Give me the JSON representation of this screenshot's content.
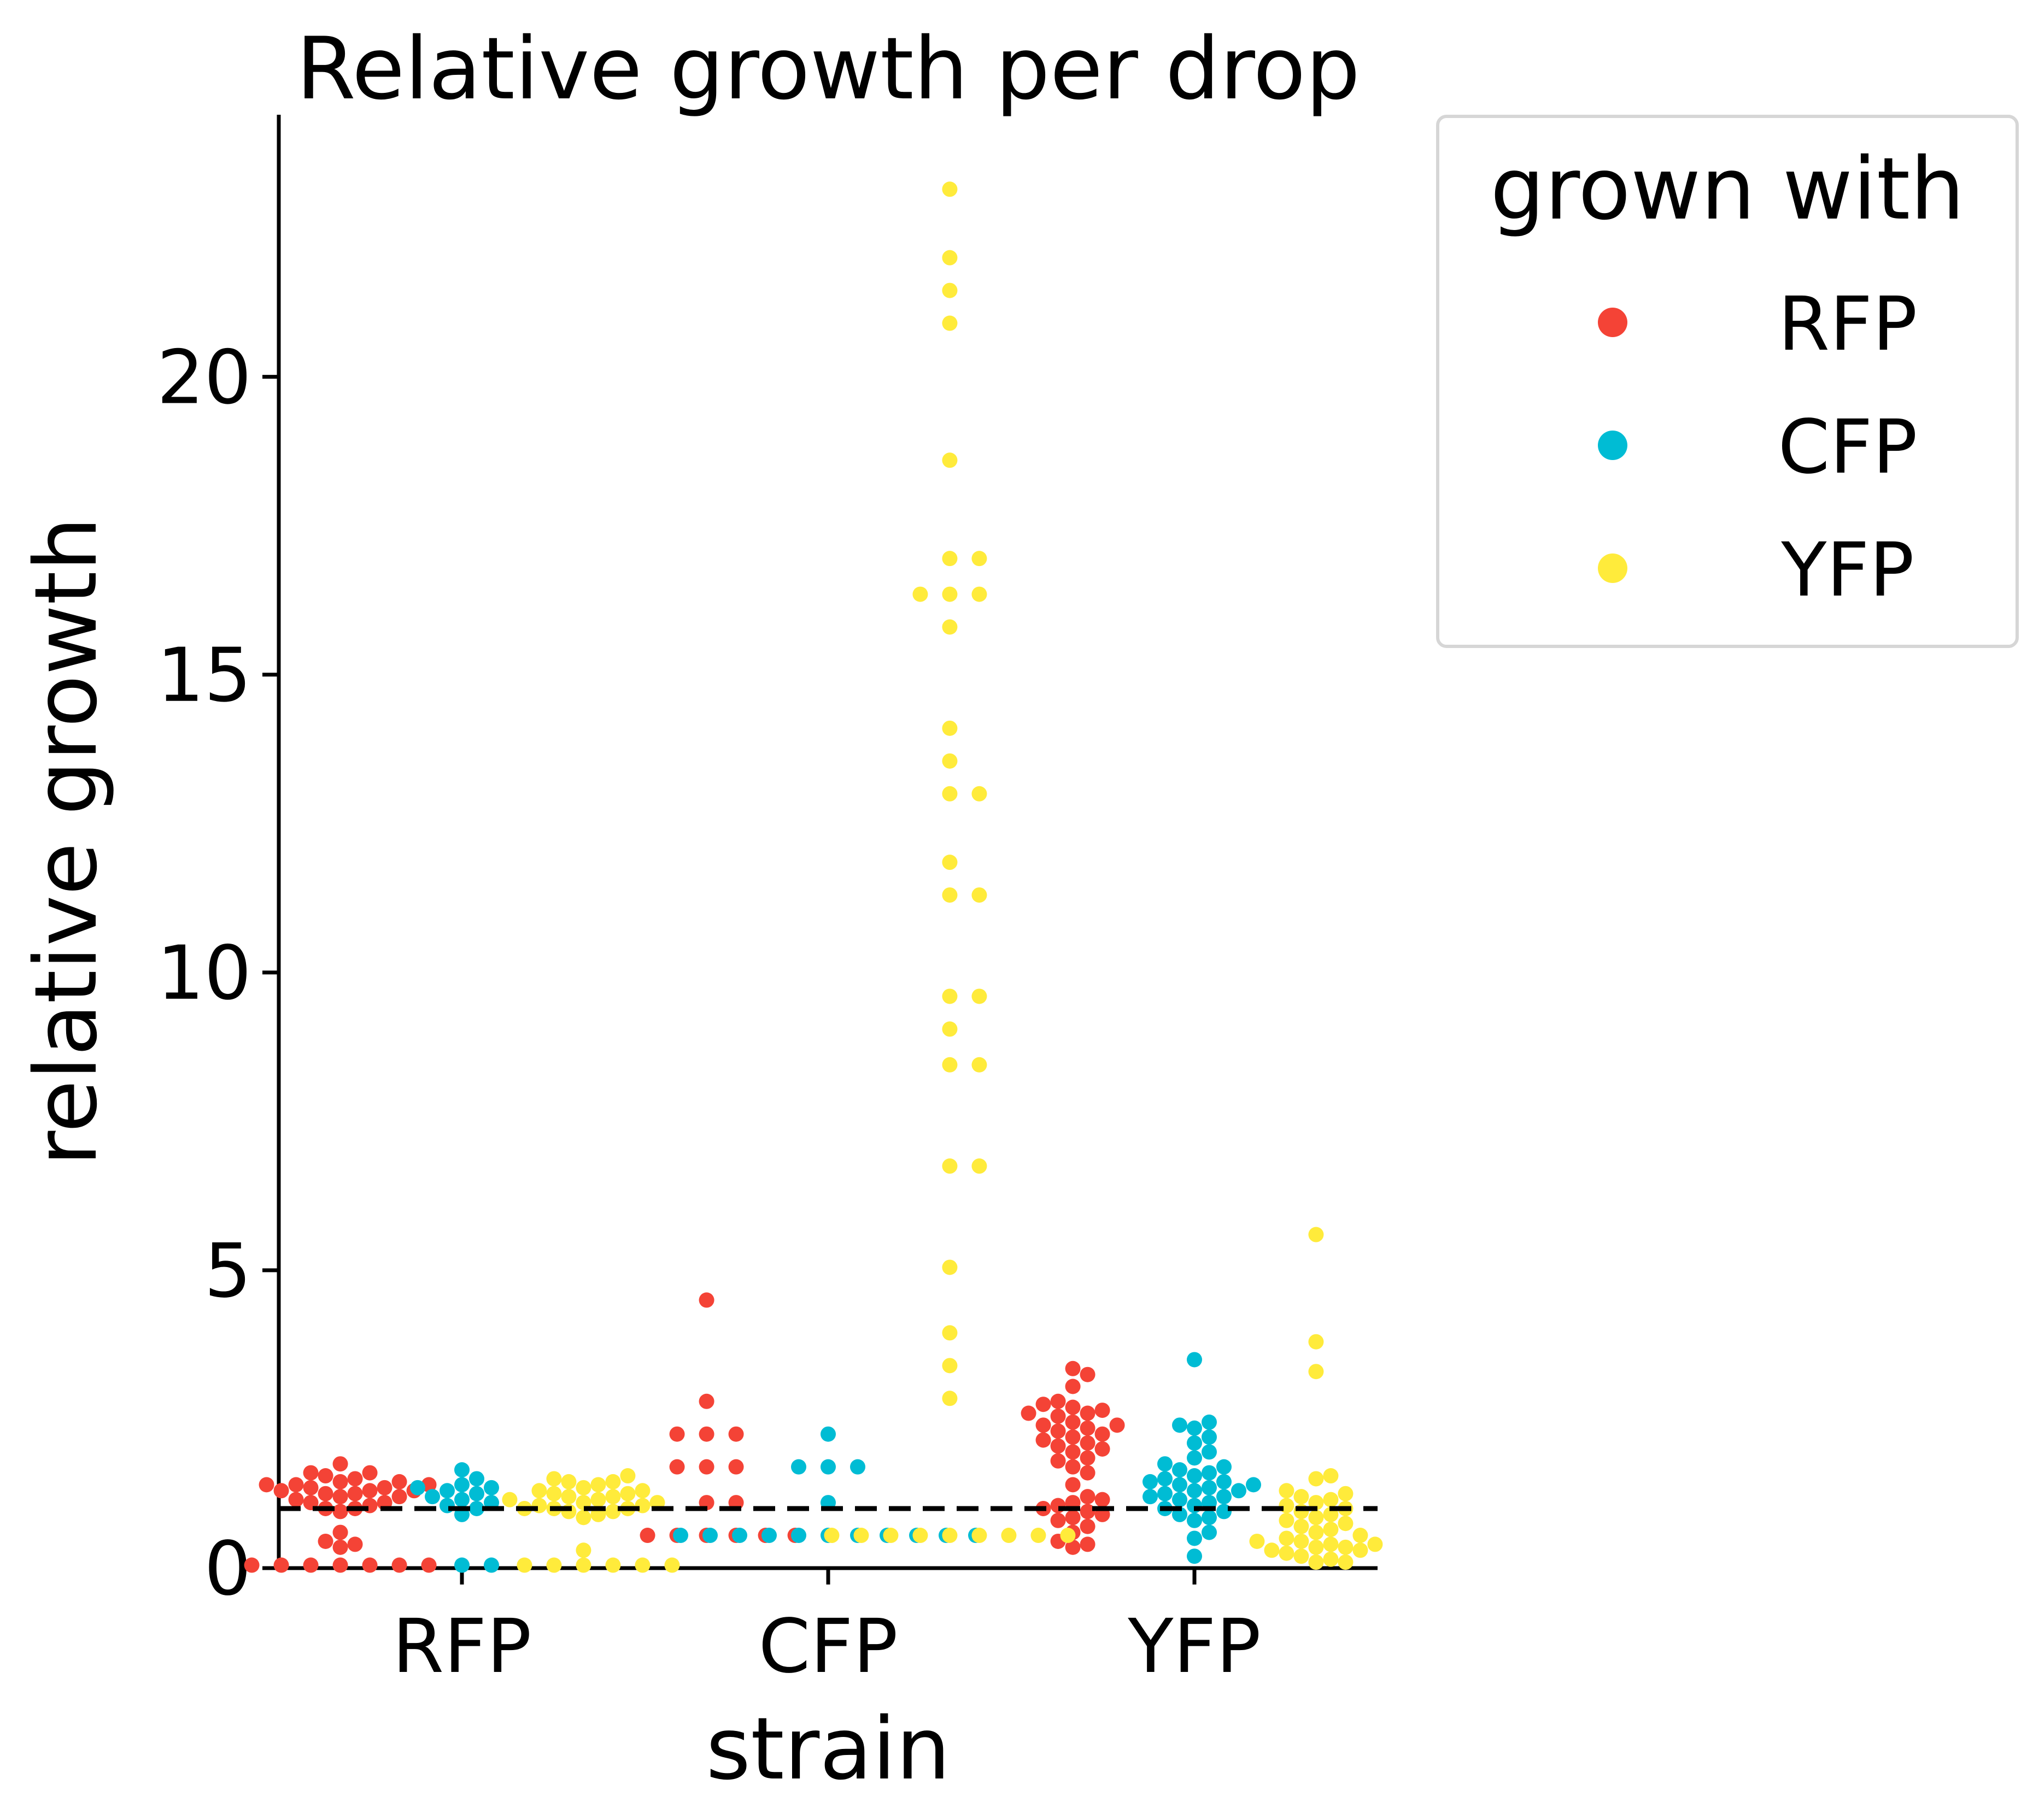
{
  "chart_data": {
    "type": "scatter",
    "subtype": "swarm",
    "title": "Relative growth per drop",
    "xlabel": "strain",
    "ylabel": "relative growth",
    "categories": [
      "RFP",
      "CFP",
      "YFP"
    ],
    "ylim": [
      0,
      24.4
    ],
    "yticks": [
      0,
      5,
      10,
      15,
      20
    ],
    "reference_line": {
      "y": 1.0,
      "style": "dashed"
    },
    "legend": {
      "title": "grown with",
      "position": "outside-right"
    },
    "grid": false,
    "series": [
      {
        "name": "RFP",
        "color": "#f44336",
        "values": [
          [
            1.75,
            1.6,
            1.6,
            1.55,
            1.5,
            1.45,
            1.45,
            1.4,
            1.4,
            1.4,
            1.35,
            1.35,
            1.3,
            1.3,
            1.3,
            1.25,
            1.25,
            1.2,
            1.2,
            1.15,
            1.1,
            1.1,
            1.05,
            1.0,
            1.0,
            0.95,
            0.6,
            0.45,
            0.4,
            0.35,
            0.05,
            0.05,
            0.05,
            0.05,
            0.05,
            0.05,
            0.05
          ],
          [
            4.5,
            2.8,
            2.25,
            2.25,
            2.25,
            1.7,
            1.7,
            1.7,
            1.1,
            1.1,
            0.55,
            0.55,
            0.55,
            0.55,
            0.55,
            0.55
          ],
          [
            3.35,
            3.25,
            3.05,
            2.8,
            2.75,
            2.7,
            2.65,
            2.6,
            2.6,
            2.55,
            2.45,
            2.4,
            2.4,
            2.35,
            2.3,
            2.25,
            2.2,
            2.15,
            2.1,
            2.05,
            2.0,
            1.95,
            1.85,
            1.8,
            1.7,
            1.6,
            1.4,
            1.2,
            1.15,
            1.1,
            1.05,
            1.0,
            0.95,
            0.9,
            0.85,
            0.8,
            0.7,
            0.6,
            0.45,
            0.4,
            0.35
          ]
        ]
      },
      {
        "name": "CFP",
        "color": "#00bcd4",
        "values": [
          [
            1.65,
            1.5,
            1.4,
            1.35,
            1.35,
            1.3,
            1.25,
            1.2,
            1.15,
            1.1,
            1.05,
            1.0,
            0.9,
            0.05,
            0.05
          ],
          [
            2.25,
            1.7,
            1.7,
            1.7,
            1.1,
            0.55,
            0.55,
            0.55,
            0.55,
            0.55,
            0.55,
            0.55,
            0.55,
            0.55,
            0.55,
            0.55
          ],
          [
            3.5,
            2.45,
            2.4,
            2.35,
            2.2,
            2.1,
            1.95,
            1.85,
            1.75,
            1.7,
            1.65,
            1.6,
            1.55,
            1.5,
            1.45,
            1.45,
            1.4,
            1.4,
            1.35,
            1.3,
            1.3,
            1.25,
            1.2,
            1.2,
            1.15,
            1.1,
            1.05,
            1.0,
            0.95,
            0.9,
            0.85,
            0.8,
            0.6,
            0.5,
            0.2
          ]
        ]
      },
      {
        "name": "YFP",
        "color": "#ffeb3b",
        "values": [
          [
            1.55,
            1.5,
            1.45,
            1.45,
            1.4,
            1.35,
            1.3,
            1.3,
            1.25,
            1.25,
            1.2,
            1.2,
            1.15,
            1.15,
            1.1,
            1.1,
            1.05,
            1.05,
            1.0,
            1.0,
            1.0,
            0.95,
            0.95,
            0.9,
            0.85,
            0.3,
            0.05,
            0.05,
            0.05,
            0.05,
            0.05,
            0.05
          ],
          [
            23.15,
            22.0,
            21.45,
            20.9,
            18.6,
            16.95,
            16.95,
            16.35,
            16.35,
            16.35,
            15.8,
            14.1,
            13.55,
            13.0,
            13.0,
            11.85,
            11.3,
            11.3,
            9.6,
            9.6,
            9.05,
            8.45,
            8.45,
            6.75,
            6.75,
            5.05,
            3.95,
            3.4,
            2.85,
            0.55,
            0.55,
            0.55,
            0.55,
            0.55,
            0.55,
            0.55,
            0.55,
            0.55
          ],
          [
            5.6,
            3.8,
            3.3,
            1.55,
            1.5,
            1.3,
            1.25,
            1.2,
            1.15,
            1.1,
            1.05,
            1.0,
            0.95,
            0.9,
            0.85,
            0.8,
            0.75,
            0.7,
            0.65,
            0.6,
            0.55,
            0.5,
            0.45,
            0.45,
            0.4,
            0.4,
            0.35,
            0.35,
            0.3,
            0.3,
            0.25,
            0.2,
            0.15,
            0.1,
            0.1
          ]
        ]
      }
    ]
  }
}
